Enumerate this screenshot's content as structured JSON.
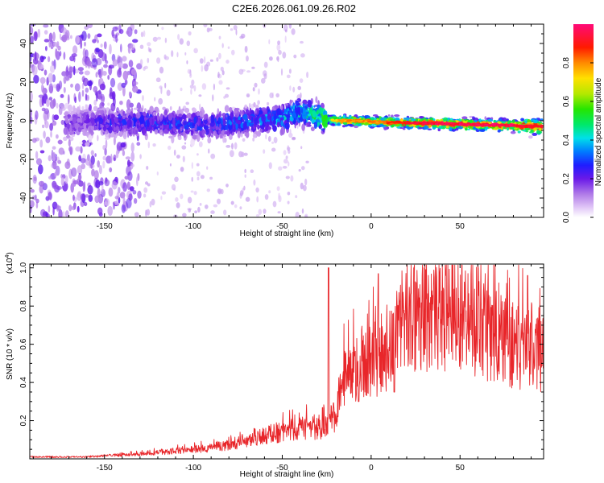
{
  "title": "C2E6.2026.061.09.26.R02",
  "chart_data": [
    {
      "type": "heatmap",
      "name": "spectrogram",
      "xlabel": "Height of straight line (km)",
      "ylabel": "Frequency (Hz)",
      "xlim": [
        -192,
        97
      ],
      "ylim": [
        -50,
        50
      ],
      "xticks": [
        -150,
        -100,
        -50,
        0,
        50
      ],
      "xtick_labels": [
        "-150",
        "-100",
        "-50",
        "0",
        "50"
      ],
      "yticks": [
        -40,
        -20,
        0,
        20,
        40
      ],
      "ytick_labels": [
        "-40",
        "-20",
        "0",
        "20",
        "40"
      ],
      "ridge": [
        {
          "x": -170,
          "freq": -1,
          "amp": 0.2
        },
        {
          "x": -150,
          "freq": -1,
          "amp": 0.25
        },
        {
          "x": -130,
          "freq": -1,
          "amp": 0.3
        },
        {
          "x": -110,
          "freq": -1.5,
          "amp": 0.3
        },
        {
          "x": -90,
          "freq": -2,
          "amp": 0.3
        },
        {
          "x": -70,
          "freq": 0,
          "amp": 0.35
        },
        {
          "x": -50,
          "freq": 1,
          "amp": 0.4
        },
        {
          "x": -40,
          "freq": 5,
          "amp": 0.45
        },
        {
          "x": -30,
          "freq": 2,
          "amp": 0.55
        },
        {
          "x": -20,
          "freq": 0,
          "amp": 0.75
        },
        {
          "x": -10,
          "freq": 0,
          "amp": 0.8
        },
        {
          "x": 0,
          "freq": -0.5,
          "amp": 0.8
        },
        {
          "x": 20,
          "freq": -1,
          "amp": 0.9
        },
        {
          "x": 40,
          "freq": -1.5,
          "amp": 0.95
        },
        {
          "x": 60,
          "freq": -2,
          "amp": 0.95
        },
        {
          "x": 80,
          "freq": -2.5,
          "amp": 0.95
        },
        {
          "x": 96,
          "freq": -3,
          "amp": 0.9
        }
      ],
      "colorbar": {
        "label": "Normalized spectral amplitude",
        "range": [
          0,
          1
        ],
        "ticks": [
          0.0,
          0.2,
          0.4,
          0.6,
          0.8
        ],
        "tick_labels": [
          "0.0",
          "0.2",
          "0.4",
          "0.6",
          "0.8"
        ]
      }
    },
    {
      "type": "line",
      "name": "snr",
      "xlabel": "Height of straight line (km)",
      "ylabel": "SNR (10 * v/v)",
      "scale_label": "(x10",
      "scale_exp": "4",
      "scale_close": ")",
      "xlim": [
        -192,
        97
      ],
      "ylim": [
        0,
        1.02
      ],
      "xticks": [
        -150,
        -100,
        -50,
        0,
        50
      ],
      "xtick_labels": [
        "-150",
        "-100",
        "-50",
        "0",
        "50"
      ],
      "yticks": [
        0.2,
        0.4,
        0.6,
        0.8,
        1.0
      ],
      "ytick_labels": [
        "0.2",
        "0.4",
        "0.6",
        "0.8",
        "1.0"
      ],
      "color": "#e8262a",
      "envelope": [
        {
          "x": -192,
          "y": 0.01
        },
        {
          "x": -160,
          "y": 0.01
        },
        {
          "x": -150,
          "y": 0.02
        },
        {
          "x": -130,
          "y": 0.03
        },
        {
          "x": -110,
          "y": 0.05
        },
        {
          "x": -90,
          "y": 0.07
        },
        {
          "x": -70,
          "y": 0.11
        },
        {
          "x": -55,
          "y": 0.16
        },
        {
          "x": -45,
          "y": 0.19
        },
        {
          "x": -30,
          "y": 0.2
        },
        {
          "x": -24,
          "y": 0.21
        },
        {
          "x": -19,
          "y": 0.3
        },
        {
          "x": -15,
          "y": 0.52
        },
        {
          "x": -8,
          "y": 0.55
        },
        {
          "x": 0,
          "y": 0.62
        },
        {
          "x": 10,
          "y": 0.72
        },
        {
          "x": 20,
          "y": 0.85
        },
        {
          "x": 30,
          "y": 0.9
        },
        {
          "x": 45,
          "y": 0.92
        },
        {
          "x": 60,
          "y": 0.82
        },
        {
          "x": 75,
          "y": 0.74
        },
        {
          "x": 85,
          "y": 0.71
        },
        {
          "x": 96,
          "y": 0.7
        }
      ],
      "peaks": [
        {
          "x": -24,
          "y": 1.0
        },
        {
          "x": 4,
          "y": 0.97
        },
        {
          "x": 24,
          "y": 1.0
        },
        {
          "x": 42,
          "y": 0.96
        },
        {
          "x": 88,
          "y": 0.96
        }
      ],
      "dips": [
        {
          "x": -7,
          "y": 0.3
        },
        {
          "x": 13,
          "y": 0.35
        },
        {
          "x": 80,
          "y": 0.45
        },
        {
          "x": 87,
          "y": 0.47
        }
      ]
    }
  ]
}
